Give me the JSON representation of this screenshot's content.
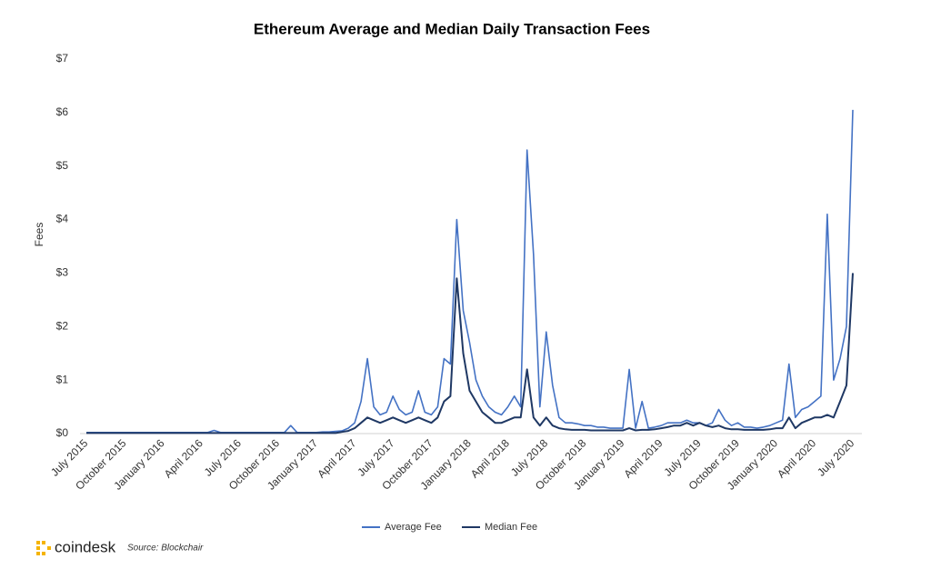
{
  "chart_data": {
    "type": "line",
    "title": "Ethereum Average and Median Daily Transaction Fees",
    "y_label": "Fees",
    "brand": "coindesk",
    "source": "Source: Blockchair",
    "categories": [
      "July 2015",
      null,
      null,
      null,
      null,
      null,
      "October 2015",
      null,
      null,
      null,
      null,
      null,
      "January 2016",
      null,
      null,
      null,
      null,
      null,
      "April 2016",
      null,
      null,
      null,
      null,
      null,
      "July 2016",
      null,
      null,
      null,
      null,
      null,
      "October 2016",
      null,
      null,
      null,
      null,
      null,
      "January 2017",
      null,
      null,
      null,
      null,
      null,
      "April 2017",
      null,
      null,
      null,
      null,
      null,
      "July 2017",
      null,
      null,
      null,
      null,
      null,
      "October 2017",
      null,
      null,
      null,
      null,
      null,
      "January 2018",
      null,
      null,
      null,
      null,
      null,
      "April 2018",
      null,
      null,
      null,
      null,
      null,
      "July 2018",
      null,
      null,
      null,
      null,
      null,
      "October 2018",
      null,
      null,
      null,
      null,
      null,
      "January 2019",
      null,
      null,
      null,
      null,
      null,
      "April 2019",
      null,
      null,
      null,
      null,
      null,
      "July 2019",
      null,
      null,
      null,
      null,
      null,
      "October 2019",
      null,
      null,
      null,
      null,
      null,
      "January 2020",
      null,
      null,
      null,
      null,
      null,
      "April 2020",
      null,
      null,
      null,
      null,
      null,
      "July 2020"
    ],
    "series": [
      {
        "name": "Average Fee",
        "color": "#4472c4",
        "values": [
          0.02,
          0.02,
          0.02,
          0.02,
          0.02,
          0.02,
          0.02,
          0.02,
          0.02,
          0.02,
          0.02,
          0.02,
          0.02,
          0.02,
          0.02,
          0.02,
          0.02,
          0.02,
          0.02,
          0.02,
          0.06,
          0.02,
          0.02,
          0.02,
          0.02,
          0.02,
          0.02,
          0.02,
          0.02,
          0.02,
          0.02,
          0.02,
          0.15,
          0.02,
          0.02,
          0.02,
          0.02,
          0.03,
          0.03,
          0.04,
          0.05,
          0.1,
          0.2,
          0.6,
          1.4,
          0.5,
          0.35,
          0.4,
          0.7,
          0.45,
          0.35,
          0.4,
          0.8,
          0.4,
          0.35,
          0.5,
          1.4,
          1.3,
          4.0,
          2.3,
          1.7,
          1.0,
          0.7,
          0.5,
          0.4,
          0.35,
          0.5,
          0.7,
          0.5,
          5.3,
          3.35,
          0.5,
          1.9,
          0.9,
          0.3,
          0.2,
          0.2,
          0.18,
          0.15,
          0.15,
          0.12,
          0.12,
          0.1,
          0.1,
          0.1,
          1.2,
          0.1,
          0.6,
          0.1,
          0.12,
          0.15,
          0.2,
          0.2,
          0.2,
          0.25,
          0.2,
          0.2,
          0.15,
          0.2,
          0.45,
          0.25,
          0.15,
          0.2,
          0.12,
          0.12,
          0.1,
          0.12,
          0.15,
          0.2,
          0.25,
          1.3,
          0.3,
          0.45,
          0.5,
          0.6,
          0.7,
          4.1,
          1.0,
          1.4,
          2.0,
          6.05
        ]
      },
      {
        "name": "Median Fee",
        "color": "#1f3864",
        "values": [
          0.01,
          0.01,
          0.01,
          0.01,
          0.01,
          0.01,
          0.01,
          0.01,
          0.01,
          0.01,
          0.01,
          0.01,
          0.01,
          0.01,
          0.01,
          0.01,
          0.01,
          0.01,
          0.01,
          0.01,
          0.01,
          0.01,
          0.01,
          0.01,
          0.01,
          0.01,
          0.01,
          0.01,
          0.01,
          0.01,
          0.01,
          0.01,
          0.01,
          0.01,
          0.01,
          0.01,
          0.01,
          0.01,
          0.01,
          0.01,
          0.03,
          0.05,
          0.1,
          0.2,
          0.3,
          0.25,
          0.2,
          0.25,
          0.3,
          0.25,
          0.2,
          0.25,
          0.3,
          0.25,
          0.2,
          0.3,
          0.6,
          0.7,
          2.9,
          1.5,
          0.8,
          0.6,
          0.4,
          0.3,
          0.2,
          0.2,
          0.25,
          0.3,
          0.3,
          1.2,
          0.3,
          0.15,
          0.3,
          0.15,
          0.1,
          0.08,
          0.07,
          0.07,
          0.07,
          0.06,
          0.06,
          0.06,
          0.06,
          0.06,
          0.06,
          0.1,
          0.06,
          0.07,
          0.07,
          0.08,
          0.1,
          0.12,
          0.15,
          0.15,
          0.2,
          0.15,
          0.2,
          0.15,
          0.12,
          0.15,
          0.1,
          0.08,
          0.08,
          0.07,
          0.07,
          0.07,
          0.07,
          0.08,
          0.1,
          0.1,
          0.3,
          0.1,
          0.2,
          0.25,
          0.3,
          0.3,
          0.35,
          0.3,
          0.6,
          0.9,
          3.0
        ]
      }
    ],
    "ylim": [
      0,
      7
    ],
    "yticks": [
      {
        "value": 0,
        "label": "$0"
      },
      {
        "value": 1,
        "label": "$1"
      },
      {
        "value": 2,
        "label": "$2"
      },
      {
        "value": 3,
        "label": "$3"
      },
      {
        "value": 4,
        "label": "$4"
      },
      {
        "value": 5,
        "label": "$5"
      },
      {
        "value": 6,
        "label": "$6"
      },
      {
        "value": 7,
        "label": "$7"
      }
    ],
    "grid": false,
    "legend": "bottom"
  }
}
